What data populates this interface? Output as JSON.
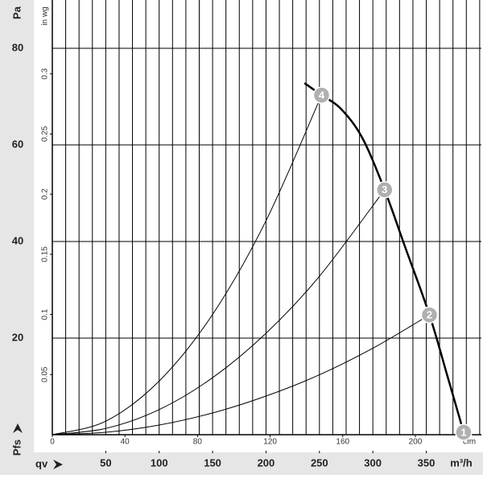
{
  "chart_data": {
    "type": "line",
    "x_label": "qv",
    "y_label": "Pfs",
    "x_unit": "m³/h",
    "y_unit": "Pa",
    "x2_unit": "cfm",
    "y2_unit": "in wg",
    "xlim": [
      0,
      401.6
    ],
    "xticks": [
      50,
      100,
      150,
      200,
      250,
      300,
      350
    ],
    "x2lim": [
      0,
      236.4
    ],
    "x2ticks": [
      0,
      40,
      80,
      120,
      160,
      200
    ],
    "ylim": [
      0,
      90
    ],
    "yticks": [
      20,
      40,
      60,
      80
    ],
    "y2lim": [
      0,
      0.3614
    ],
    "y2ticks": [
      0.05,
      0.1,
      0.15,
      0.2,
      0.25,
      0.3
    ],
    "xgrid": [
      12.5,
      25,
      37.5,
      50,
      62.5,
      75,
      87.5,
      100,
      112.5,
      125,
      137.5,
      150,
      162.5,
      175,
      187.5,
      200,
      212.5,
      225,
      237.5,
      250,
      262.5,
      275,
      287.5,
      300,
      312.5,
      325,
      337.5,
      350,
      362.5,
      375,
      387.5,
      400
    ],
    "series": [
      {
        "color": "#000000",
        "width": 2.5,
        "x": [
          236,
          252,
          270,
          290,
          311,
          330,
          353,
          370,
          385
        ],
        "values": [
          72.8,
          70.3,
          67.5,
          61.5,
          50.7,
          39,
          24.8,
          12,
          0.5
        ]
      },
      {
        "color": "#000000",
        "width": 1,
        "x": [
          0,
          50,
          100,
          150,
          200,
          252
        ],
        "values": [
          0,
          2.8,
          11.1,
          24.9,
          44.3,
          70.3
        ]
      },
      {
        "color": "#000000",
        "width": 1,
        "x": [
          0,
          50,
          100,
          150,
          200,
          250,
          311
        ],
        "values": [
          0,
          1.3,
          5.2,
          11.8,
          21.0,
          32.8,
          50.7
        ]
      },
      {
        "color": "#000000",
        "width": 1,
        "x": [
          0,
          50,
          100,
          150,
          200,
          250,
          300,
          353
        ],
        "values": [
          0,
          0.5,
          2.0,
          4.5,
          8.0,
          12.4,
          17.9,
          24.8
        ]
      }
    ],
    "points": [
      {
        "label": "1",
        "x": 385,
        "y": 0.5
      },
      {
        "label": "2",
        "x": 353,
        "y": 24.8
      },
      {
        "label": "3",
        "x": 311,
        "y": 50.7
      },
      {
        "label": "4",
        "x": 252,
        "y": 70.3
      }
    ],
    "point_color": "#b0b0b0"
  }
}
